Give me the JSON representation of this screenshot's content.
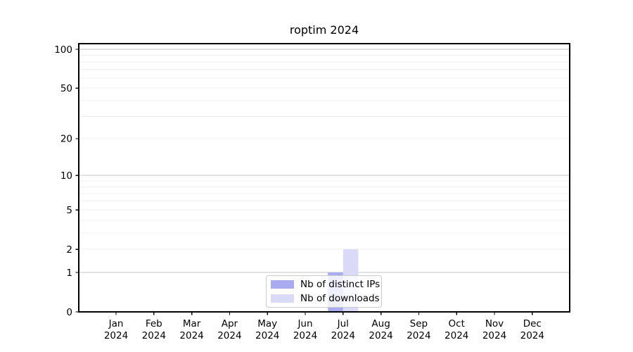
{
  "chart_data": {
    "type": "bar",
    "title": "roptim 2024",
    "categories": [
      "Jan",
      "Feb",
      "Mar",
      "Apr",
      "May",
      "Jun",
      "Jul",
      "Aug",
      "Sep",
      "Oct",
      "Nov",
      "Dec"
    ],
    "year_label": "2024",
    "series": [
      {
        "name": "Nb of distinct IPs",
        "color": "#aaaaf0",
        "values": [
          0,
          0,
          0,
          0,
          0,
          0,
          1,
          0,
          0,
          0,
          0,
          0
        ]
      },
      {
        "name": "Nb of downloads",
        "color": "#dadaf8",
        "values": [
          0,
          0,
          0,
          0,
          0,
          0,
          2,
          0,
          0,
          0,
          0,
          0
        ]
      }
    ],
    "yscale": "log1p",
    "yticks": [
      0,
      1,
      2,
      5,
      10,
      20,
      50,
      100
    ],
    "major_gridlines": [
      1,
      10,
      100
    ],
    "minor_gridlines": [
      2,
      3,
      4,
      5,
      6,
      7,
      8,
      9,
      20,
      30,
      40,
      50,
      60,
      70,
      80,
      90
    ],
    "ylim": [
      0,
      112
    ],
    "xlabel": "",
    "ylabel": "",
    "grid": true,
    "legend_position": "lower center inside plot"
  },
  "colors": {
    "background": "#ffffff",
    "axis": "#000000",
    "tick_label": "#000000",
    "major_gridline": "#c3c3c3",
    "minor_gridline": "#efefef",
    "legend_border": "#cccccc"
  }
}
